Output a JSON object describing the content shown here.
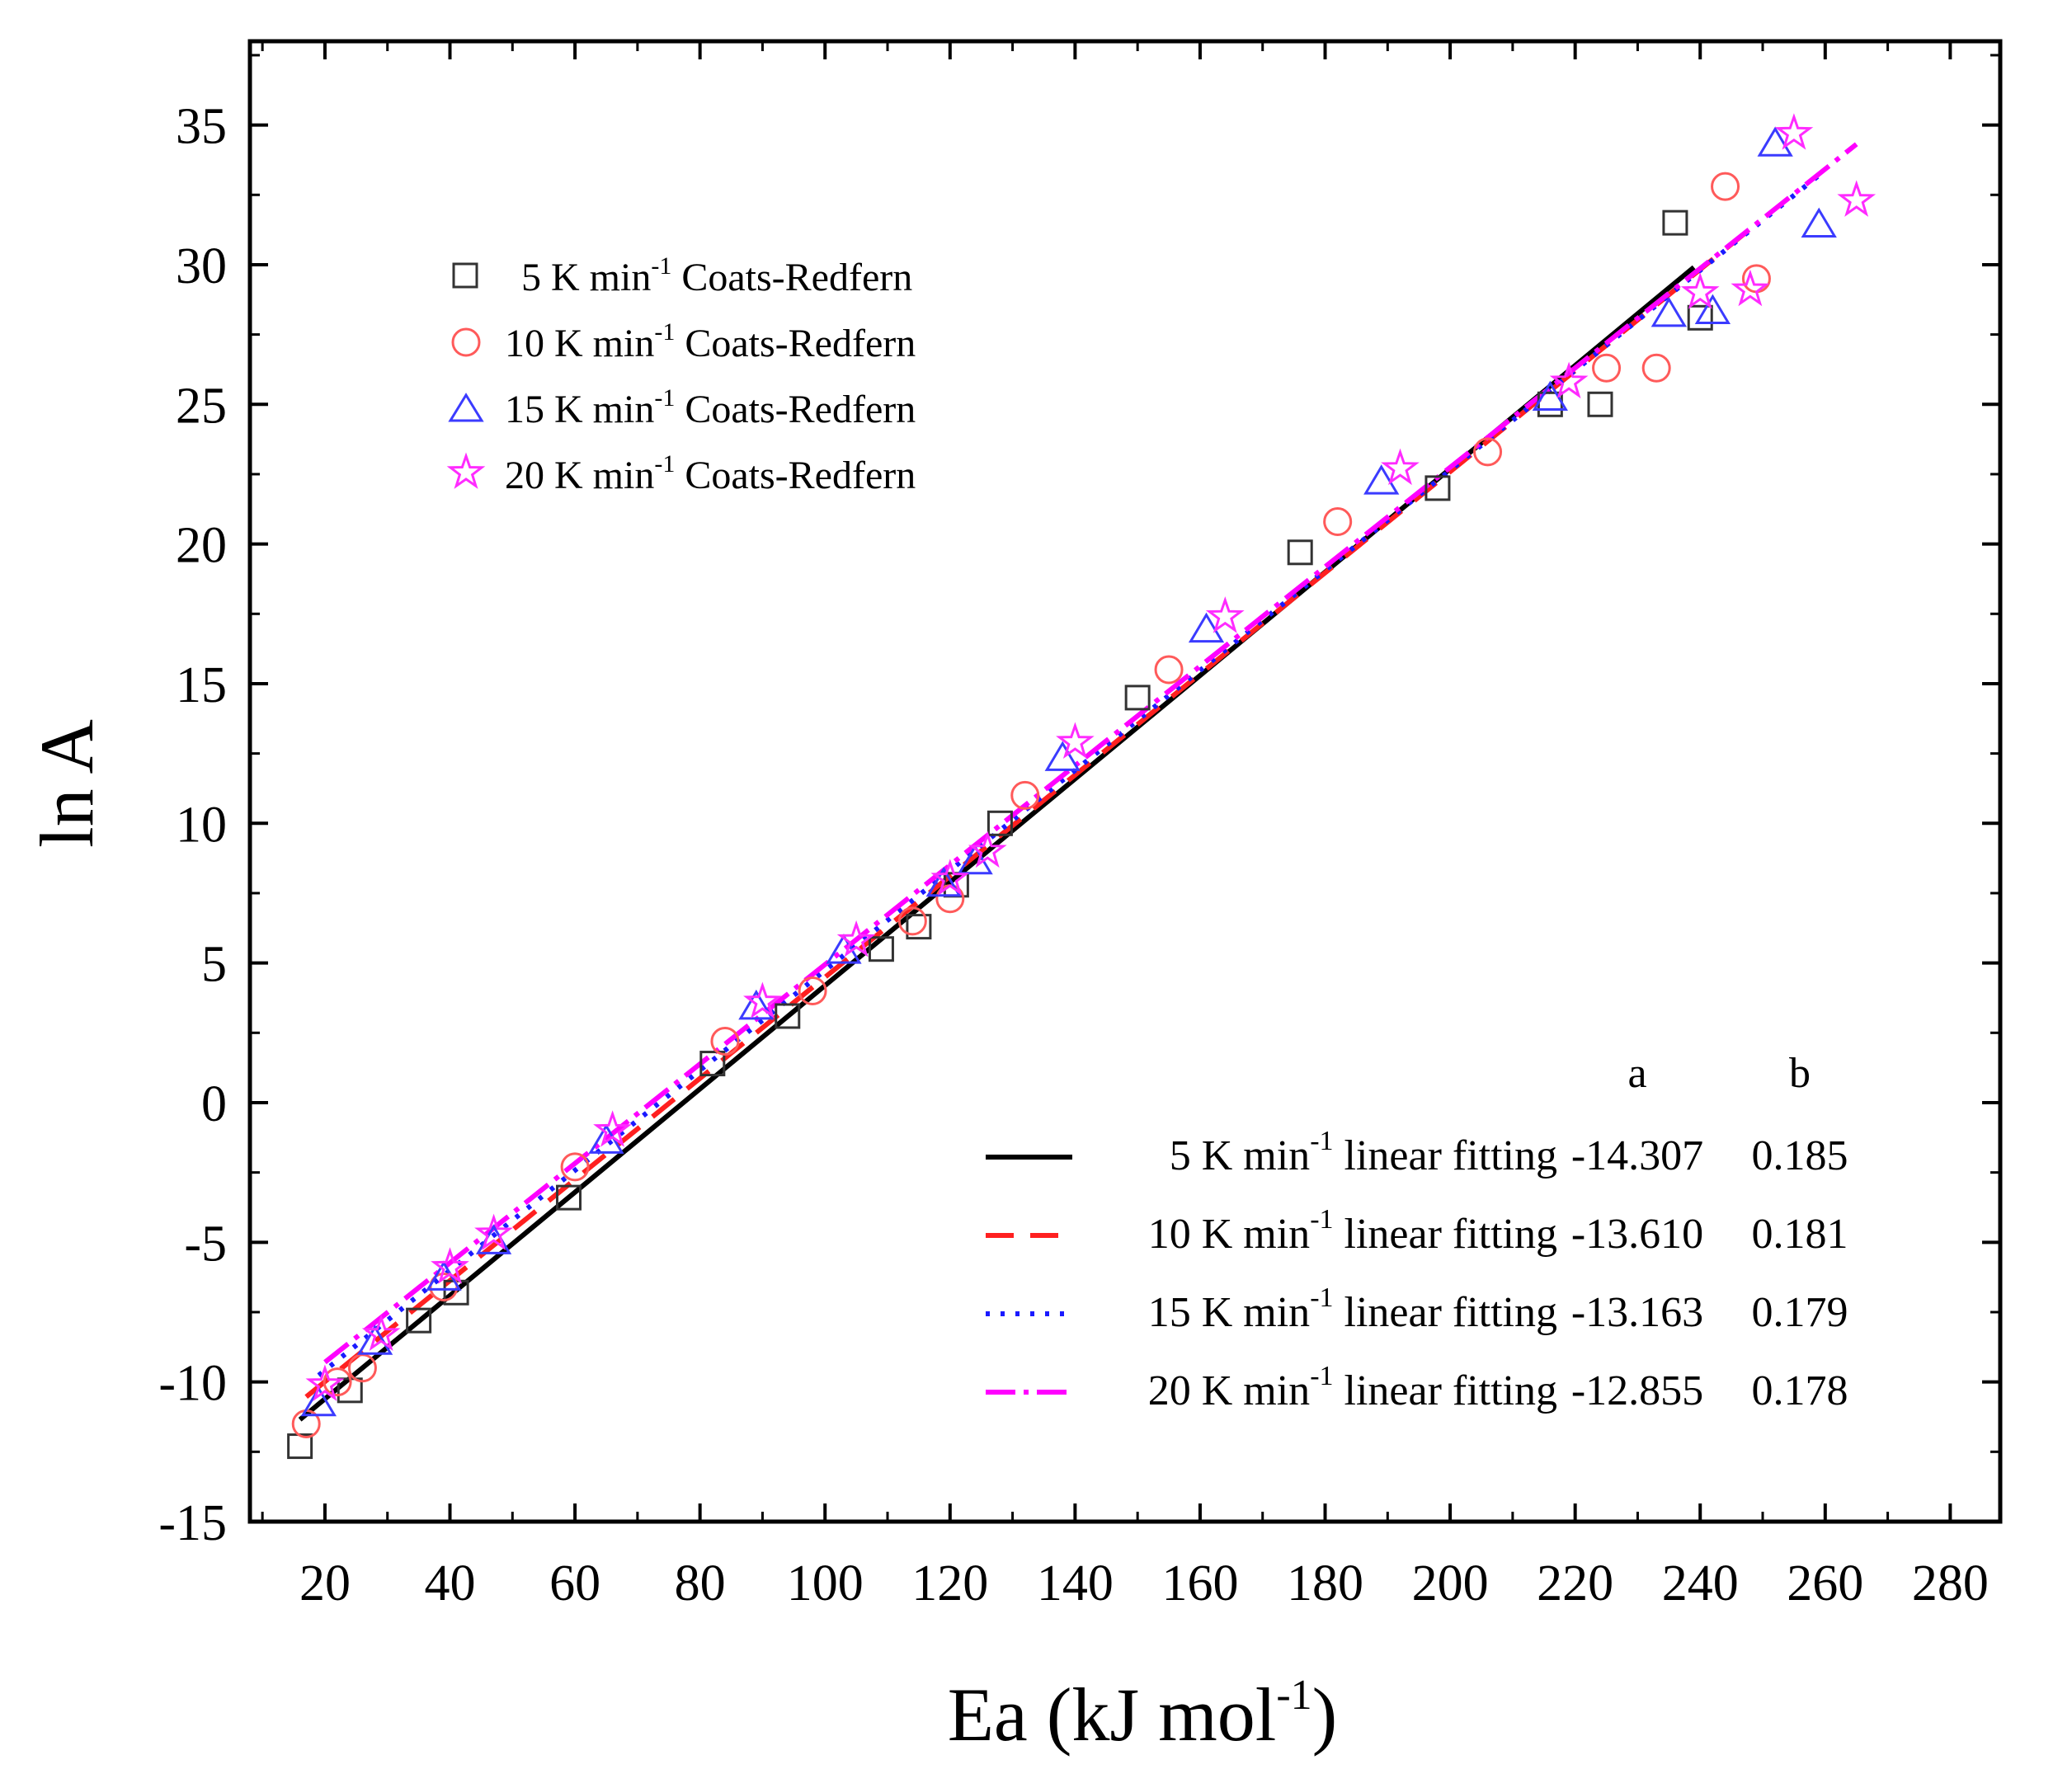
{
  "chart_data": {
    "type": "scatter",
    "title": "",
    "xlabel": "Ea (kJ mol",
    "xlabel_sup": "-1",
    "xlabel_end": ")",
    "ylabel": "ln A",
    "xlim": [
      8,
      288
    ],
    "ylim": [
      -15,
      38
    ],
    "xticks": [
      20,
      40,
      60,
      80,
      100,
      120,
      140,
      160,
      180,
      200,
      220,
      240,
      260,
      280
    ],
    "yticks": [
      -15,
      -10,
      -5,
      0,
      5,
      10,
      15,
      20,
      25,
      30,
      35
    ],
    "legend_position": "top-left",
    "series": [
      {
        "name": "5 K min-1 Coats-Redfern",
        "legend": {
          "pre": "5 K min",
          "sup": "-1",
          "post": " Coats-Redfern"
        },
        "marker": "square",
        "color": "#333333",
        "points": [
          [
            16,
            -12.3
          ],
          [
            24,
            -10.3
          ],
          [
            35,
            -7.8
          ],
          [
            41,
            -6.8
          ],
          [
            59,
            -3.4
          ],
          [
            82,
            1.4
          ],
          [
            94,
            3.1
          ],
          [
            109,
            5.5
          ],
          [
            115,
            6.3
          ],
          [
            121,
            7.8
          ],
          [
            128,
            10.0
          ],
          [
            150,
            14.5
          ],
          [
            176,
            19.7
          ],
          [
            198,
            22.0
          ],
          [
            216,
            25.0
          ],
          [
            224,
            25.0
          ],
          [
            236,
            31.5
          ],
          [
            240,
            28.1
          ]
        ]
      },
      {
        "name": "10 K min-1 Coats-Redfern",
        "legend": {
          "pre": "10 K min",
          "sup": "-1",
          "post": " Coats-Redfern"
        },
        "marker": "circle",
        "color": "#ff5a5a",
        "points": [
          [
            17,
            -11.5
          ],
          [
            22,
            -10.0
          ],
          [
            26,
            -9.5
          ],
          [
            39,
            -6.6
          ],
          [
            60,
            -2.3
          ],
          [
            84,
            2.2
          ],
          [
            98,
            4.0
          ],
          [
            114,
            6.5
          ],
          [
            120,
            7.3
          ],
          [
            132,
            11.0
          ],
          [
            155,
            15.5
          ],
          [
            182,
            20.8
          ],
          [
            206,
            23.3
          ],
          [
            225,
            26.3
          ],
          [
            233,
            26.3
          ],
          [
            244,
            32.8
          ],
          [
            249,
            29.5
          ]
        ]
      },
      {
        "name": "15 K min-1 Coats-Redfern",
        "legend": {
          "pre": "15 K min",
          "sup": "-1",
          "post": " Coats-Redfern"
        },
        "marker": "triangle",
        "color": "#3b3bff",
        "points": [
          [
            19,
            -10.8
          ],
          [
            28,
            -8.6
          ],
          [
            39,
            -6.3
          ],
          [
            47,
            -5.0
          ],
          [
            65,
            -1.4
          ],
          [
            89,
            3.4
          ],
          [
            103,
            5.4
          ],
          [
            119,
            7.8
          ],
          [
            124,
            8.6
          ],
          [
            138,
            12.3
          ],
          [
            161,
            16.9
          ],
          [
            189,
            22.2
          ],
          [
            216,
            25.2
          ],
          [
            235,
            28.2
          ],
          [
            242,
            28.3
          ],
          [
            252,
            34.3
          ],
          [
            259,
            31.4
          ]
        ]
      },
      {
        "name": "20 K min-1 Coats-Redfern",
        "legend": {
          "pre": "20 K min",
          "sup": "-1",
          "post": " Coats-Redfern"
        },
        "marker": "star",
        "color": "#ff2bff",
        "points": [
          [
            20,
            -10.1
          ],
          [
            29,
            -8.3
          ],
          [
            40,
            -5.9
          ],
          [
            47,
            -4.7
          ],
          [
            66,
            -1.0
          ],
          [
            90,
            3.6
          ],
          [
            105,
            5.8
          ],
          [
            120,
            8.0
          ],
          [
            126,
            9.0
          ],
          [
            140,
            12.9
          ],
          [
            164,
            17.4
          ],
          [
            192,
            22.7
          ],
          [
            219,
            25.8
          ],
          [
            240,
            29.0
          ],
          [
            248,
            29.1
          ],
          [
            255,
            34.7
          ],
          [
            265,
            32.3
          ]
        ]
      }
    ],
    "fits": {
      "header": {
        "a": "a",
        "b": "b"
      },
      "lines": [
        {
          "label_pre": "5 K min",
          "label_sup": "-1",
          "label_post": " linear fitting",
          "a": "-14.307",
          "b": "0.185",
          "slope": 0.185,
          "intercept": -14.307,
          "color": "#000000",
          "dash": "none",
          "x_range": [
            16,
            239
          ]
        },
        {
          "label_pre": "10 K min",
          "label_sup": "-1",
          "label_post": " linear fitting",
          "a": "-13.610",
          "b": "0.181",
          "slope": 0.181,
          "intercept": -13.61,
          "color": "#ff2020",
          "dash": "34 20",
          "x_range": [
            17,
            249
          ]
        },
        {
          "label_pre": "15 K min",
          "label_sup": "-1",
          "label_post": " linear fitting",
          "a": "-13.163",
          "b": "0.179",
          "slope": 0.179,
          "intercept": -13.163,
          "color": "#1a1aff",
          "dash": "5 13",
          "x_range": [
            19,
            259
          ]
        },
        {
          "label_pre": "20 K min",
          "label_sup": "-1",
          "label_post": " linear fitting",
          "a": "-12.855",
          "b": "0.178",
          "slope": 0.178,
          "intercept": -12.855,
          "color": "#ff00ff",
          "dash": "36 10 6 10",
          "x_range": [
            20,
            265
          ]
        }
      ]
    }
  }
}
